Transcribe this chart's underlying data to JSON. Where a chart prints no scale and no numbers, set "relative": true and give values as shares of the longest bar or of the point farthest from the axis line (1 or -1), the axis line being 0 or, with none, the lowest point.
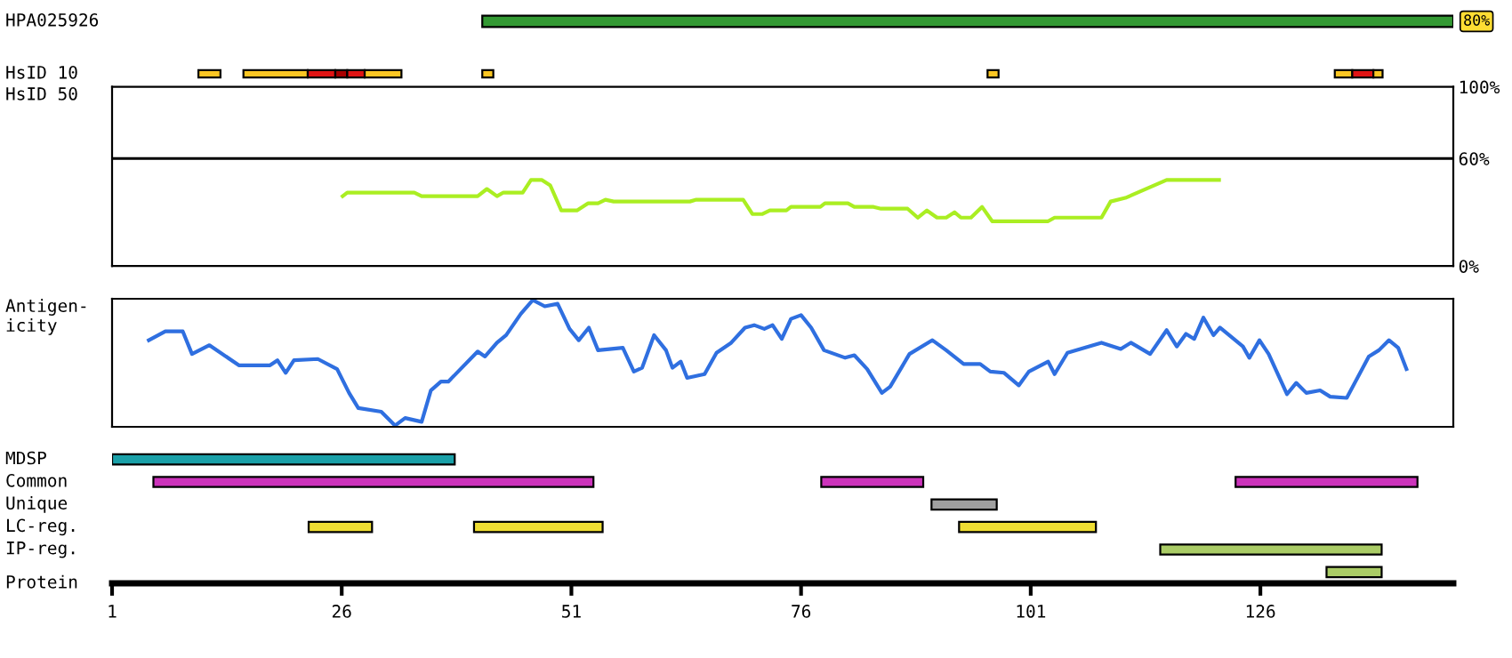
{
  "chart_data": [
    {
      "type": "bar",
      "orientation": "horizontal",
      "categories": [
        "HPA025926"
      ],
      "xlim": [
        1,
        147
      ],
      "tick_labels": false,
      "series": [
        {
          "values": [
            105.7
          ],
          "base": [
            41.3
          ],
          "color": "#339933"
        }
      ],
      "annotations": [
        {
          "text": "80%",
          "x": 147,
          "y": "HPA025926"
        }
      ]
    },
    {
      "type": "bar",
      "orientation": "horizontal",
      "categories": [
        "HsID 10"
      ],
      "xlim": [
        1,
        147
      ],
      "tick_labels": false,
      "series": [
        {
          "values": [
            2.4
          ],
          "base": [
            10.4
          ],
          "color": "#fbc623"
        },
        {
          "values": [
            7.0
          ],
          "base": [
            15.3
          ],
          "color": "#fbc623"
        },
        {
          "values": [
            3.0
          ],
          "base": [
            22.3
          ],
          "color": "#e01414"
        },
        {
          "values": [
            1.3
          ],
          "base": [
            25.3
          ],
          "color": "#a80000"
        },
        {
          "values": [
            1.9
          ],
          "base": [
            26.6
          ],
          "color": "#e01414"
        },
        {
          "values": [
            4.0
          ],
          "base": [
            28.5
          ],
          "color": "#fbc623"
        },
        {
          "values": [
            1.2
          ],
          "base": [
            41.3
          ],
          "color": "#fbc623"
        },
        {
          "values": [
            1.2
          ],
          "base": [
            96.3
          ],
          "color": "#fbc623"
        },
        {
          "values": [
            1.9
          ],
          "base": [
            134.1
          ],
          "color": "#fbc623"
        },
        {
          "values": [
            2.3
          ],
          "base": [
            136.0
          ],
          "color": "#e01414"
        },
        {
          "values": [
            1.0
          ],
          "base": [
            138.3
          ],
          "color": "#fbc623"
        }
      ]
    },
    {
      "type": "line",
      "ylabel": "HsID 50",
      "xlim": [
        1,
        147
      ],
      "ylim": [
        0,
        100
      ],
      "yticks": [
        {
          "value": 0,
          "label": "0%"
        },
        {
          "value": 60,
          "label": "60%"
        },
        {
          "value": 100,
          "label": "100%"
        }
      ],
      "tick_labels": "y",
      "ref_lines": [
        {
          "axis": "y",
          "value": 60,
          "color": "#000000"
        }
      ],
      "series": [
        {
          "color": "#aaee22",
          "x": [
            26.1,
            26.6,
            33.9,
            34.7,
            40.8,
            41.8,
            42.9,
            43.6,
            45.7,
            46.6,
            47.8,
            48.7,
            49.9,
            51.6,
            52.8,
            53.9,
            54.7,
            55.6,
            63.9,
            64.6,
            69.7,
            70.7,
            71.8,
            72.6,
            74.4,
            74.9,
            78.1,
            78.6,
            81.1,
            81.8,
            83.9,
            84.7,
            87.6,
            88.7,
            89.7,
            90.8,
            91.8,
            92.7,
            93.4,
            94.5,
            95.7,
            96.8,
            102.9,
            103.6,
            108.7,
            109.7,
            111.3,
            115.8,
            121.5
          ],
          "values": [
            39,
            41,
            41,
            39,
            39,
            43,
            39,
            41,
            41,
            48,
            48,
            45,
            31,
            31,
            35,
            35,
            37,
            36,
            36,
            37,
            37,
            29,
            29,
            31,
            31,
            33,
            33,
            35,
            35,
            33,
            33,
            32,
            32,
            27,
            31,
            27,
            27,
            30,
            27,
            27,
            33,
            25,
            25,
            27,
            27,
            36,
            38,
            48,
            48
          ]
        }
      ]
    },
    {
      "type": "line",
      "ylabel": "Antigen-\nicity",
      "relative": true,
      "xlim": [
        1,
        147
      ],
      "tick_labels": false,
      "series": [
        {
          "color": "#2f6fe0",
          "x": [
            5.0,
            6.8,
            8.7,
            9.7,
            11.6,
            14.8,
            18.2,
            19.0,
            19.9,
            20.8,
            23.4,
            25.5,
            26.8,
            27.8,
            30.3,
            31.8,
            32.9,
            34.7,
            35.7,
            36.8,
            37.6,
            40.8,
            41.6,
            42.9,
            43.9,
            45.5,
            46.8,
            48.1,
            49.5,
            50.8,
            51.8,
            52.9,
            53.9,
            56.6,
            57.8,
            58.7,
            60.0,
            61.3,
            62.0,
            62.9,
            63.6,
            65.5,
            66.8,
            68.4,
            69.9,
            70.9,
            72.0,
            72.9,
            73.9,
            74.9,
            76.0,
            77.1,
            78.5,
            80.8,
            81.8,
            83.2,
            84.8,
            85.7,
            87.8,
            90.3,
            91.8,
            93.7,
            95.5,
            96.6,
            98.1,
            99.7,
            100.8,
            102.9,
            103.6,
            105.0,
            108.7,
            110.8,
            111.9,
            114.0,
            115.8,
            116.9,
            117.9,
            118.8,
            119.8,
            120.9,
            121.6,
            124.1,
            124.8,
            125.9,
            126.9,
            128.9,
            129.9,
            131.0,
            132.5,
            133.6,
            135.4,
            137.8,
            138.9,
            140.0,
            141.0,
            141.9
          ],
          "values": [
            0.68,
            0.75,
            0.75,
            0.57,
            0.64,
            0.48,
            0.48,
            0.52,
            0.42,
            0.52,
            0.53,
            0.45,
            0.26,
            0.14,
            0.11,
            0,
            0.06,
            0.03,
            0.28,
            0.35,
            0.35,
            0.59,
            0.55,
            0.66,
            0.72,
            0.89,
            1.0,
            0.95,
            0.97,
            0.77,
            0.68,
            0.78,
            0.6,
            0.62,
            0.43,
            0.46,
            0.72,
            0.6,
            0.46,
            0.51,
            0.38,
            0.41,
            0.58,
            0.66,
            0.78,
            0.8,
            0.77,
            0.8,
            0.69,
            0.85,
            0.88,
            0.78,
            0.6,
            0.54,
            0.56,
            0.45,
            0.26,
            0.31,
            0.57,
            0.68,
            0.6,
            0.49,
            0.49,
            0.43,
            0.42,
            0.32,
            0.43,
            0.51,
            0.41,
            0.58,
            0.66,
            0.61,
            0.66,
            0.57,
            0.76,
            0.63,
            0.73,
            0.69,
            0.86,
            0.72,
            0.78,
            0.63,
            0.54,
            0.68,
            0.57,
            0.25,
            0.34,
            0.26,
            0.28,
            0.23,
            0.22,
            0.55,
            0.6,
            0.68,
            0.62,
            0.45
          ]
        }
      ]
    },
    {
      "type": "bar",
      "orientation": "horizontal",
      "xlabel": "Protein",
      "categories": [
        "MDSP",
        "Common",
        "Unique",
        "LC-reg.",
        "IP-reg.",
        null
      ],
      "xlim": [
        1,
        147
      ],
      "xticks": [
        1,
        26,
        51,
        76,
        101,
        126
      ],
      "tick_labels": "x",
      "series": [
        {
          "values": [
            37.3,
            47.9,
            7.1,
            6.9,
            24.1,
            6.0
          ],
          "base": [
            1,
            5.5,
            90.2,
            22.4,
            115.1,
            133.2
          ],
          "colors": [
            "#1aa0a8",
            "#cc33bb",
            "#a0a0a0",
            "#eedd33",
            "#aacc66",
            "#aacc66"
          ]
        },
        {
          "values": [
            null,
            11.1,
            null,
            14.0,
            null,
            null
          ],
          "base": [
            null,
            78.2,
            null,
            40.4,
            null,
            null
          ],
          "colors": [
            "#1aa0a8",
            "#cc33bb",
            "#a0a0a0",
            "#eedd33",
            "#aacc66",
            "#aacc66"
          ]
        },
        {
          "values": [
            null,
            19.8,
            null,
            14.9,
            null,
            null
          ],
          "base": [
            null,
            123.3,
            null,
            93.2,
            null,
            null
          ],
          "colors": [
            "#1aa0a8",
            "#cc33bb",
            "#a0a0a0",
            "#eedd33",
            "#aacc66",
            "#aacc66"
          ]
        }
      ]
    }
  ]
}
